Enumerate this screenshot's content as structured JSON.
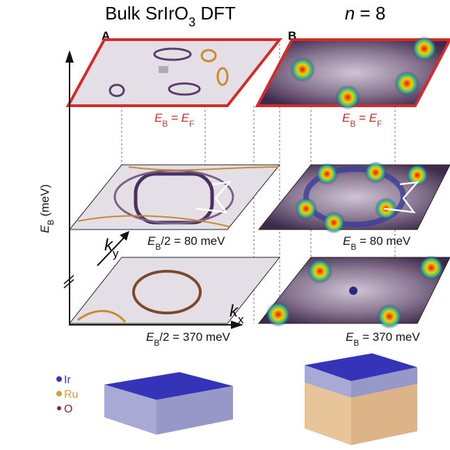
{
  "panel_a": {
    "letter": "A",
    "title": [
      "Bulk SrIrO",
      "3",
      " DFT"
    ],
    "top_label": [
      "E",
      "B",
      " = ",
      "E",
      "F"
    ],
    "mid_label": [
      "E",
      "B",
      "/2 = 80 meV"
    ],
    "bottom_label": [
      "E",
      "B",
      "/2 = 370 meV"
    ]
  },
  "panel_b": {
    "letter": "B",
    "title": [
      "n",
      " = 8"
    ],
    "top_label": [
      "E",
      "B",
      " = ",
      "E",
      "F"
    ],
    "mid_label": [
      "E",
      "B",
      " = 80 meV"
    ],
    "bottom_label": [
      "E",
      "B",
      " = 370 meV"
    ]
  },
  "axes": {
    "y_label": [
      "E",
      "B",
      " (meV)"
    ],
    "ky": [
      "k",
      "y"
    ],
    "kx": [
      "k",
      "x"
    ]
  },
  "legend": [
    "Ir",
    "Ru",
    "O"
  ]
}
